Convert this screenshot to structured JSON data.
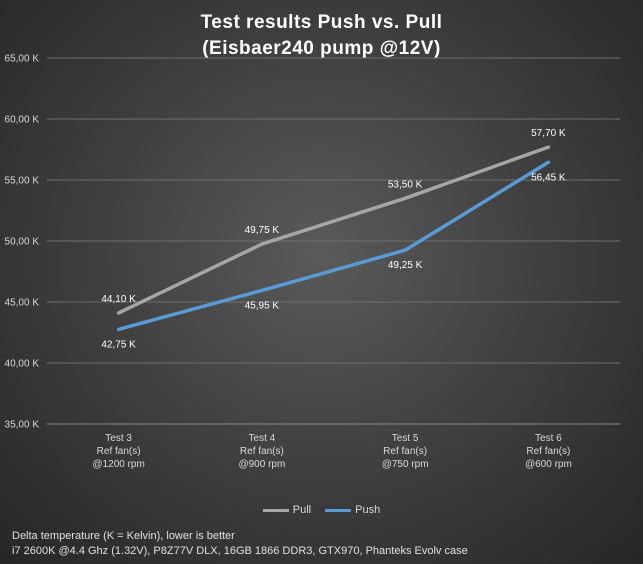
{
  "title_line1": "Test results Push vs. Pull",
  "title_line2": "(Eisbaer240 pump @12V)",
  "footnote_line1": "Delta temperature (K = Kelvin), lower is better",
  "footnote_line2": "i7 2600K @4.4 Ghz (1.32V), P8Z77V DLX, 16GB 1866 DDR3, GTX970, Phanteks Evolv case",
  "chart_data": {
    "type": "line",
    "title": "Test results Push vs. Pull (Eisbaer240 pump @12V)",
    "categories": [
      [
        "Test 3",
        "Ref fan(s)",
        "@1200 rpm"
      ],
      [
        "Test 4",
        "Ref fan(s)",
        "@900 rpm"
      ],
      [
        "Test 5",
        "Ref fan(s)",
        "@750 rpm"
      ],
      [
        "Test 6",
        "Ref fan(s)",
        "@600 rpm"
      ]
    ],
    "series": [
      {
        "name": "Pull",
        "color": "#a6a6a6",
        "values": [
          44.1,
          49.75,
          53.5,
          57.7
        ],
        "labels": [
          "44,10 K",
          "49,75 K",
          "53,50 K",
          "57,70 K"
        ]
      },
      {
        "name": "Push",
        "color": "#5b9bd5",
        "values": [
          42.75,
          45.95,
          49.25,
          56.45
        ],
        "labels": [
          "42,75 K",
          "45,95 K",
          "49,25 K",
          "56,45 K"
        ]
      }
    ],
    "ylim": [
      35,
      65
    ],
    "yticks": [
      35,
      40,
      45,
      50,
      55,
      60,
      65
    ],
    "ytick_labels": [
      "35,00 K",
      "40,00 K",
      "45,00 K",
      "50,00 K",
      "55,00 K",
      "60,00 K",
      "65,00 K"
    ],
    "grid": true,
    "legend": "bottom-center"
  }
}
